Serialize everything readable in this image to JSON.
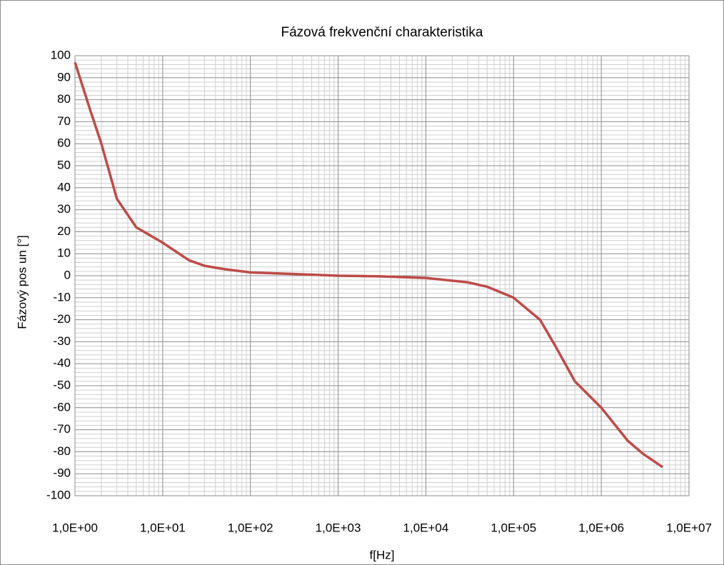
{
  "chart_data": {
    "type": "line",
    "title": "Fázová frekvenční charakteristika",
    "x_label": "f[Hz]",
    "y_label": "Fázový pos un [°]",
    "x_log": true,
    "grid": true,
    "minor_grid": true,
    "xlim": [
      1,
      10000000
    ],
    "xticks": [
      {
        "value": 1,
        "label": "1,0E+00"
      },
      {
        "value": 10,
        "label": "1,0E+01"
      },
      {
        "value": 100,
        "label": "1,0E+02"
      },
      {
        "value": 1000,
        "label": "1,0E+03"
      },
      {
        "value": 10000,
        "label": "1,0E+04"
      },
      {
        "value": 100000,
        "label": "1,0E+05"
      },
      {
        "value": 1000000,
        "label": "1,0E+06"
      },
      {
        "value": 10000000,
        "label": "1,0E+07"
      }
    ],
    "ylim": [
      -100,
      100
    ],
    "yticks": [
      -100,
      -90,
      -80,
      -70,
      -60,
      -50,
      -40,
      -30,
      -20,
      -10,
      0,
      10,
      20,
      30,
      40,
      50,
      60,
      70,
      80,
      90,
      100
    ],
    "x": [
      1,
      1.5,
      2,
      3,
      5,
      10,
      20,
      30,
      50,
      100,
      300,
      1000,
      3000,
      10000,
      30000,
      50000,
      100000,
      200000,
      300000,
      500000,
      1000000,
      2000000,
      3000000,
      5000000
    ],
    "series": [
      {
        "name": "Fázový posun",
        "color": "#be4b48",
        "values": [
          97,
          75,
          60,
          35,
          22,
          15,
          7,
          4.5,
          3,
          1.5,
          0.8,
          0,
          -0.3,
          -1,
          -3,
          -5,
          -10,
          -20,
          -32,
          -48,
          -60,
          -75,
          -81,
          -87
        ]
      }
    ]
  }
}
